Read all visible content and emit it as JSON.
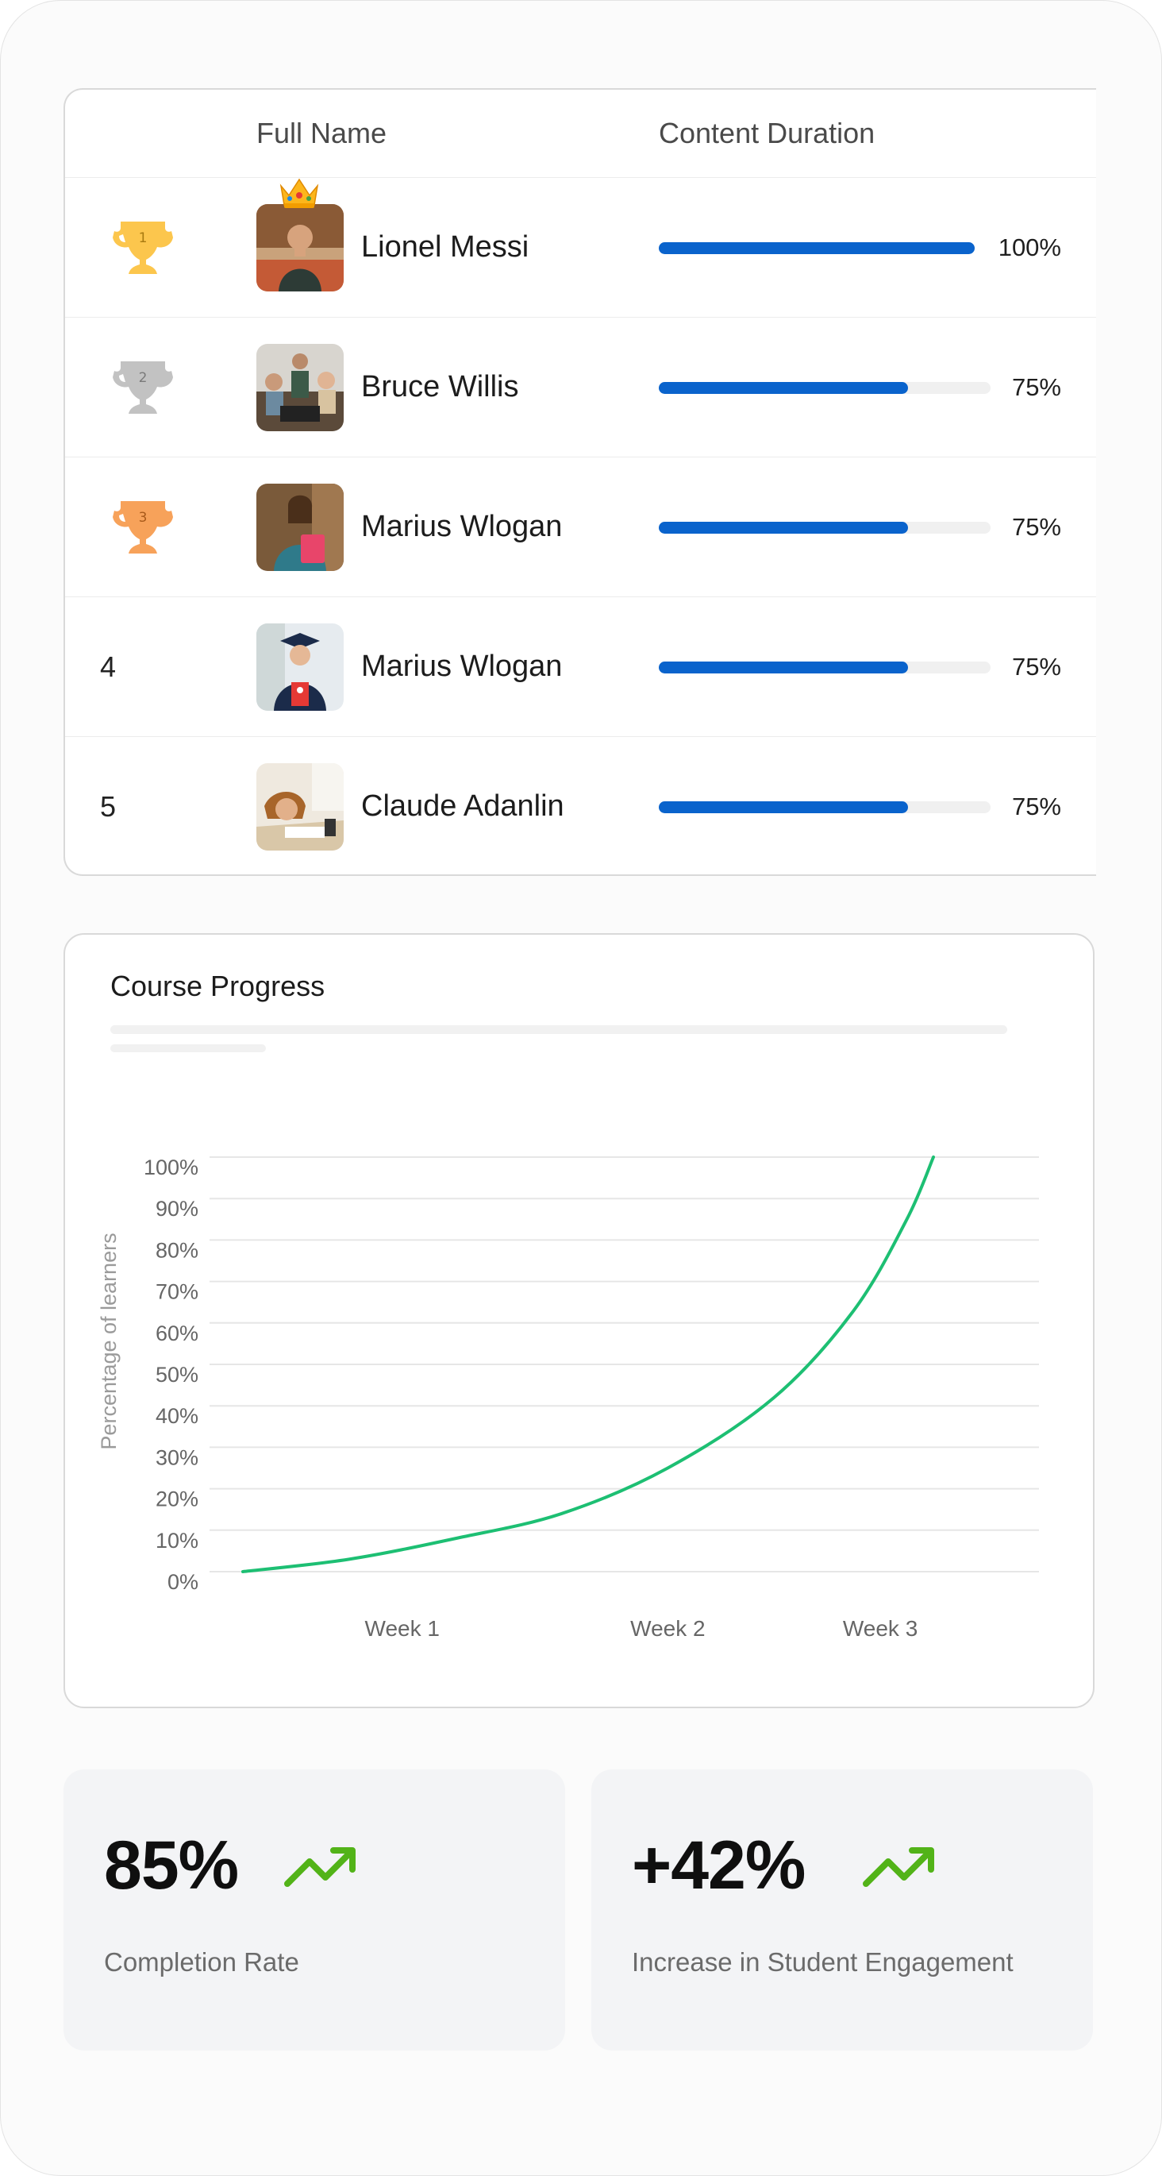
{
  "leaderboard": {
    "header": {
      "name": "Full Name",
      "duration": "Content Duration"
    },
    "rows": [
      {
        "rank": "1",
        "name": "Lionel Messi",
        "progress": 100,
        "percent": "100%",
        "trophy": "gold-trophy-icon",
        "crown": true
      },
      {
        "rank": "2",
        "name": "Bruce Willis",
        "progress": 75,
        "percent": "75%",
        "trophy": "silver-trophy-icon"
      },
      {
        "rank": "3",
        "name": "Marius Wlogan",
        "progress": 75,
        "percent": "75%",
        "trophy": "bronze-trophy-icon"
      },
      {
        "rank": "4",
        "name": "Marius Wlogan",
        "progress": 75,
        "percent": "75%"
      },
      {
        "rank": "5",
        "name": "Claude Adanlin",
        "progress": 75,
        "percent": "75%"
      }
    ]
  },
  "colors": {
    "progress": "#0a63cc",
    "gold": "#fcc64d",
    "silver": "#c2c2c2",
    "bronze": "#f7a25a",
    "line": "#1dbf73",
    "trend": "#52b318"
  },
  "chart_data": {
    "type": "line",
    "title": "Course Progress",
    "ylabel": "Percentage of learners",
    "xlabel": "",
    "categories": [
      "Week 1",
      "Week 2",
      "Week 3"
    ],
    "y_ticks": [
      "0%",
      "10%",
      "20%",
      "30%",
      "40%",
      "50%",
      "60%",
      "70%",
      "80%",
      "90%",
      "100%"
    ],
    "ylim": [
      0,
      100
    ],
    "x_range": [
      0.4,
      3.0
    ],
    "series": [
      {
        "values": [
          {
            "x": 0.4,
            "y": 0
          },
          {
            "x": 0.8,
            "y": 3
          },
          {
            "x": 1.2,
            "y": 8
          },
          {
            "x": 1.6,
            "y": 14
          },
          {
            "x": 2.0,
            "y": 25
          },
          {
            "x": 2.4,
            "y": 42
          },
          {
            "x": 2.7,
            "y": 63
          },
          {
            "x": 2.9,
            "y": 85
          },
          {
            "x": 3.0,
            "y": 100
          }
        ]
      }
    ],
    "grid": true
  },
  "stats": [
    {
      "value": "85%",
      "label": "Completion Rate",
      "icon": "trend-up-icon"
    },
    {
      "value": "+42%",
      "label": "Increase in Student Engagement",
      "icon": "trend-up-icon"
    }
  ]
}
